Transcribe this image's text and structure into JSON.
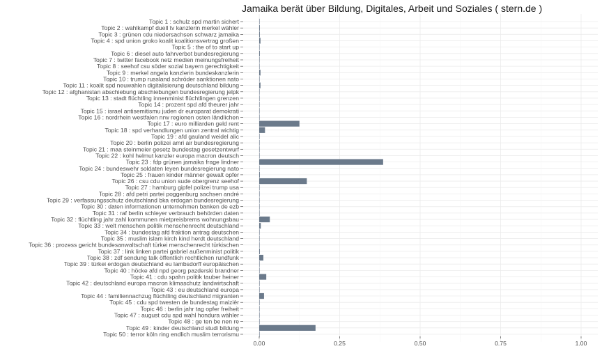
{
  "chart_data": {
    "type": "bar",
    "orientation": "horizontal",
    "title": "Jamaika berät über Bildung, Digitales, Arbeit und Soziales ( stern.de )",
    "xlabel": "",
    "ylabel": "",
    "xlim": [
      0,
      1
    ],
    "xticks": [
      "0.00",
      "0.25",
      "0.50",
      "0.75",
      "1.00"
    ],
    "xtick_values": [
      0,
      0.25,
      0.5,
      0.75,
      1.0
    ],
    "grid": true,
    "bar_color": "#6b7a8b",
    "categories": [
      "Topic 1 : schulz spd martin sichert",
      "Topic 2 : wahlkampf duell tv kanzlerin merkel wähler",
      "Topic 3 : grünen cdu niedersachsen schwarz jamaika",
      "Topic 4 : spd union groko koalit koalitionsvertrag großen",
      "Topic 5 : the of to start up",
      "Topic 6 : diesel auto fahrverbot bundesregierung",
      "Topic 7 : twitter facebook netz medien meinungsfreiheit",
      "Topic 8 : seehof csu söder sozial bayern gerechtigkeit",
      "Topic 9 : merkel angela kanzlerin bundeskanzlerin",
      "Topic 10 : trump russland schröder sanktionen nato",
      "Topic 11 : koalit spd neuwahlen digitalisierung deutschland bildung",
      "Topic 12 : afghanistan abschiebung abschiebungen bundesregierung jelpk",
      "Topic 13 : stadt flüchtling innenminist flüchtlingen grenzen",
      "Topic 14 : prozent spd afd theurer jahr",
      "Topic 15 : israel antisemitismu juden dr europarat demokrati",
      "Topic 16 : nordrhein westfalen nrw regionen osten ländlichen",
      "Topic 17 : euro milliarden geld rent",
      "Topic 18 : spd verhandlungen union zentral wichtig",
      "Topic 19 : afd gauland weidel alic",
      "Topic 20 : berlin polizei amri air bundesregierung",
      "Topic 21 : maa steinmeier gesetz bundestag gesetzentwurf",
      "Topic 22 : kohl helmut kanzler europa macron deutsch",
      "Topic 23 : fdp grünen jamaika frage lindner",
      "Topic 24 : bundeswehr soldaten leyen bundesregierung nato",
      "Topic 25 : frauen kinder männer gewalt opfer",
      "Topic 26 : csu cdu union sude obergrenz seehof",
      "Topic 27 : hamburg gipfel polizei trump usa",
      "Topic 28 : afd petri partei poggenburg sachsen andré",
      "Topic 29 : verfassungsschutz deutschland bka erdogan bundesregierung",
      "Topic 30 : daten informationen unternehmen banken de ezb",
      "Topic 31 : raf berlin schleyer verbrauch behörden daten",
      "Topic 32 : flüchtling jahr zahl kommunen mietpreisbrems wohnungsbau",
      "Topic 33 : welt menschen politik menschenrecht deutschland",
      "Topic 34 : bundestag afd fraktion antrag deutschen",
      "Topic 35 : muslim islam kirch kind herdt deutschland",
      "Topic 36 : prozess gericht bundesanwaltschaft türkei menschenrecht türkischen",
      "Topic 37 : link linken partei gabriel außenminist politik",
      "Topic 38 : zdf sendung talk öffentlich rechtlichen rundfunk",
      "Topic 39 : türkei erdogan deutschland eu lambsdorff europäischen",
      "Topic 40 : höcke afd npd georg pazderski brandner",
      "Topic 41 : cdu spahn politik tauber heiner",
      "Topic 42 : deutschland europa macron klimaschutz landwirtschaft",
      "Topic 43 : eu deutschland europa",
      "Topic 44 : familiennachzug flüchtling deutschland migranten",
      "Topic 45 : cdu spd twesten de bundestag maizièr",
      "Topic 46 : berlin jahr tag opfer freiheit",
      "Topic 47 : august cdu spd wahl hondura wähler",
      "Topic 48 : ge ten be nen re",
      "Topic 49 : kinder deutschland studi bildung",
      "Topic 50 : terror köln ring endlich muslim terrorismu"
    ],
    "values": [
      0.001,
      0.002,
      0.002,
      0.004,
      0.001,
      0.002,
      0.001,
      0.001,
      0.004,
      0.001,
      0.004,
      0.001,
      0.001,
      0.001,
      0.0,
      0.001,
      0.125,
      0.018,
      0.001,
      0.001,
      0.001,
      0.001,
      0.385,
      0.001,
      0.002,
      0.148,
      0.001,
      0.001,
      0.001,
      0.001,
      0.001,
      0.033,
      0.005,
      0.001,
      0.001,
      0.0,
      0.002,
      0.013,
      0.001,
      0.001,
      0.022,
      0.001,
      0.001,
      0.015,
      0.001,
      0.001,
      0.001,
      0.001,
      0.175,
      0.001
    ]
  }
}
